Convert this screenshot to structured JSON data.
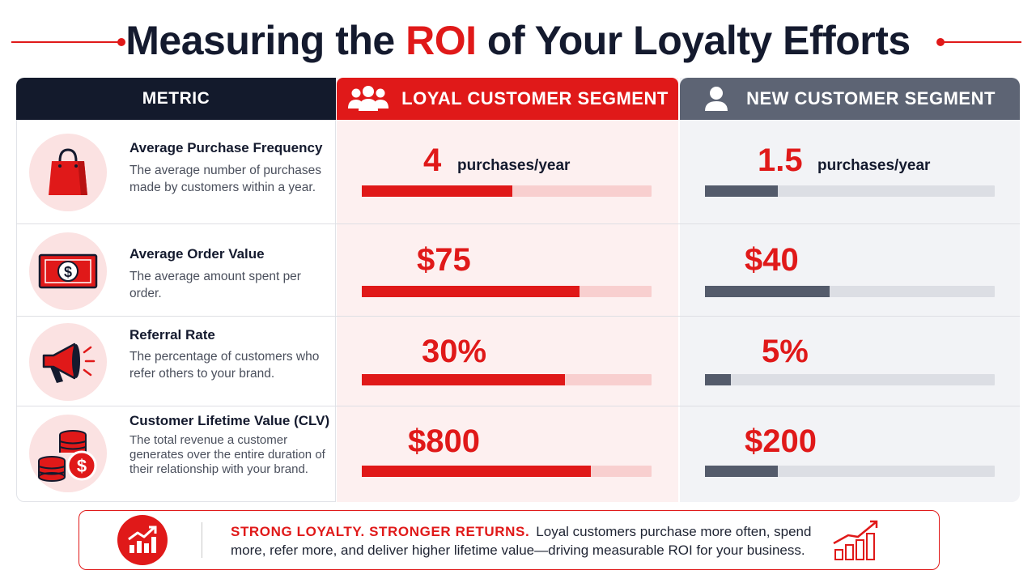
{
  "title": {
    "before": "Measuring the ",
    "accent": "ROI",
    "after": " of Your Loyalty Efforts"
  },
  "headers": {
    "metric": "METRIC",
    "loyal": "LOYAL CUSTOMER SEGMENT",
    "new": "NEW CUSTOMER SEGMENT",
    "loyal_icon": "group-icon",
    "new_icon": "person-icon"
  },
  "colors": {
    "accent": "#e01919",
    "dark": "#131a2c",
    "slate": "#5d6474"
  },
  "rows": [
    {
      "icon": "shopping-bag-icon",
      "name": "Average Purchase Frequency",
      "desc": "The average number of purchases made by customers within a year.",
      "loyal": {
        "value": "4",
        "unit": "purchases/year",
        "fill": 0.52
      },
      "new": {
        "value": "1.5",
        "unit": "purchases/year",
        "fill": 0.25
      }
    },
    {
      "icon": "money-bill-icon",
      "name": "Average Order Value",
      "desc": "The average amount spent per order.",
      "loyal": {
        "value": "$75",
        "unit": "",
        "fill": 0.75
      },
      "new": {
        "value": "$40",
        "unit": "",
        "fill": 0.43
      }
    },
    {
      "icon": "megaphone-icon",
      "name": "Referral Rate",
      "desc": "The percentage of customers who refer others to your brand.",
      "loyal": {
        "value": "30%",
        "unit": "",
        "fill": 0.7
      },
      "new": {
        "value": "5%",
        "unit": "",
        "fill": 0.09
      }
    },
    {
      "icon": "coins-icon",
      "name": "Customer Lifetime Value (CLV)",
      "desc": "The total revenue a customer generates over the entire duration of their relationship with your brand.",
      "loyal": {
        "value": "$800",
        "unit": "",
        "fill": 0.79
      },
      "new": {
        "value": "$200",
        "unit": "",
        "fill": 0.25
      }
    }
  ],
  "footer": {
    "icon": "growth-chart-icon",
    "strong": "STRONG LOYALTY. STRONGER RETURNS.",
    "text": "Loyal customers purchase more often, spend more, refer more, and deliver higher lifetime value—driving measurable ROI for your business.",
    "side_icon": "bar-chart-trend-icon"
  }
}
